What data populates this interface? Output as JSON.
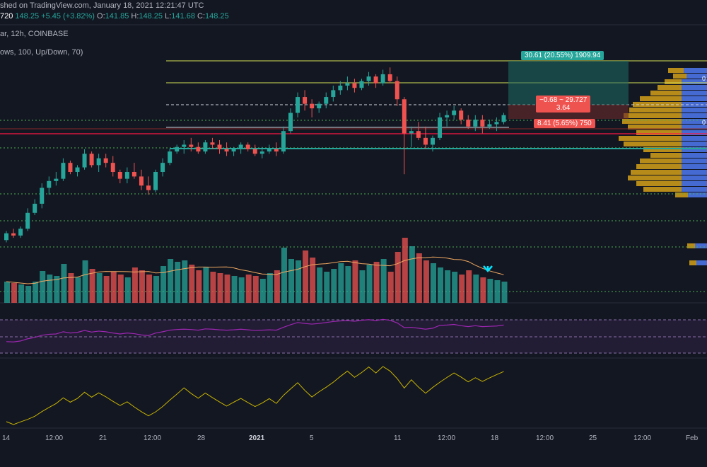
{
  "header": {
    "line1_prefix": "shed on TradingView.com, January 18, 2021 12:21:47 UTC",
    "line2": {
      "symbol_price": "720",
      "last": "148.25",
      "change": "+5.45 (+3.82%)",
      "o_label": "O:",
      "o": "141.85",
      "h_label": "H:",
      "h": "148.25",
      "l_label": "L:",
      "l": "141.68",
      "c_label": "C:",
      "c": "148.25"
    },
    "line3": "ar, 12h, COINBASE",
    "line4": "ows, 100, Up/Down, 70)"
  },
  "position_tool": {
    "target_label": "30.61 (20.55%) 1909.94",
    "mid_label_1": "−0.68 ~ 29.727",
    "mid_label_2": "3.64",
    "stop_label": "8.41 (5.65%) 750"
  },
  "edge_labels": [
    "0",
    "0"
  ],
  "x_axis": {
    "labels": [
      "14",
      "12:00",
      "21",
      "12:00",
      "28",
      "2021",
      "5",
      "11",
      "12:00",
      "18",
      "12:00",
      "25",
      "12:00",
      "Feb"
    ]
  },
  "colors": {
    "up": "#26a69a",
    "down": "#ef5350",
    "bg": "#131722",
    "vwap": "#f0a860",
    "rsi": "#9c27b0",
    "obv": "#c8b400",
    "level_green": "#4caf50",
    "level_red": "#ff1744",
    "profile_gold": "#d4a017",
    "profile_blue": "#2962ff"
  },
  "icons": {
    "signal": "arrow-down-icon"
  },
  "chart_data": {
    "type": "candlestick",
    "candles": [
      [
        138,
        142,
        137,
        141
      ],
      [
        141,
        143,
        139,
        140
      ],
      [
        140,
        144,
        139,
        143
      ],
      [
        143,
        152,
        142,
        150
      ],
      [
        150,
        156,
        149,
        154
      ],
      [
        154,
        163,
        152,
        161
      ],
      [
        161,
        166,
        158,
        164
      ],
      [
        164,
        168,
        162,
        165
      ],
      [
        165,
        174,
        164,
        172
      ],
      [
        172,
        173,
        167,
        168
      ],
      [
        168,
        171,
        166,
        170
      ],
      [
        170,
        178,
        169,
        176
      ],
      [
        176,
        177,
        170,
        171
      ],
      [
        171,
        176,
        168,
        174
      ],
      [
        174,
        176,
        170,
        172
      ],
      [
        172,
        175,
        166,
        168
      ],
      [
        168,
        169,
        163,
        165
      ],
      [
        165,
        170,
        163,
        168
      ],
      [
        168,
        172,
        165,
        166
      ],
      [
        166,
        169,
        160,
        162
      ],
      [
        162,
        166,
        158,
        160
      ],
      [
        160,
        169,
        159,
        168
      ],
      [
        168,
        174,
        166,
        172
      ],
      [
        172,
        178,
        171,
        177
      ],
      [
        177,
        180,
        176,
        179
      ],
      [
        179,
        182,
        176,
        180
      ],
      [
        180,
        183,
        177,
        179
      ],
      [
        179,
        181,
        176,
        177
      ],
      [
        177,
        182,
        176,
        181
      ],
      [
        181,
        183,
        178,
        180
      ],
      [
        180,
        182,
        176,
        178
      ],
      [
        178,
        181,
        175,
        177
      ],
      [
        177,
        179,
        175,
        178
      ],
      [
        178,
        181,
        176,
        180
      ],
      [
        180,
        181,
        177,
        178
      ],
      [
        178,
        180,
        175,
        176
      ],
      [
        176,
        179,
        174,
        177
      ],
      [
        177,
        180,
        176,
        178
      ],
      [
        178,
        181,
        175,
        177
      ],
      [
        177,
        188,
        176,
        186
      ],
      [
        186,
        196,
        185,
        194
      ],
      [
        194,
        203,
        192,
        201
      ],
      [
        201,
        204,
        195,
        198
      ],
      [
        198,
        200,
        192,
        196
      ],
      [
        196,
        199,
        194,
        198
      ],
      [
        198,
        203,
        196,
        201
      ],
      [
        201,
        206,
        199,
        204
      ],
      [
        204,
        208,
        202,
        206
      ],
      [
        206,
        210,
        204,
        207
      ],
      [
        207,
        209,
        203,
        205
      ],
      [
        205,
        209,
        204,
        208
      ],
      [
        208,
        212,
        206,
        210
      ],
      [
        210,
        211,
        205,
        207
      ],
      [
        207,
        213,
        206,
        211
      ],
      [
        211,
        214,
        207,
        208
      ],
      [
        208,
        210,
        197,
        200
      ],
      [
        200,
        201,
        167,
        185
      ],
      [
        185,
        188,
        179,
        186
      ],
      [
        186,
        190,
        182,
        183
      ],
      [
        183,
        188,
        178,
        180
      ],
      [
        180,
        184,
        177,
        183
      ],
      [
        183,
        194,
        182,
        192
      ],
      [
        192,
        195,
        188,
        193
      ],
      [
        193,
        197,
        191,
        195
      ],
      [
        195,
        196,
        189,
        191
      ],
      [
        191,
        193,
        187,
        188
      ],
      [
        188,
        193,
        186,
        191
      ],
      [
        191,
        193,
        185,
        188
      ],
      [
        188,
        191,
        187,
        189
      ],
      [
        189,
        192,
        186,
        190
      ],
      [
        190,
        194,
        189,
        193
      ]
    ],
    "volumes": [
      30,
      28,
      26,
      24,
      30,
      45,
      40,
      38,
      55,
      42,
      36,
      60,
      48,
      42,
      38,
      44,
      40,
      36,
      50,
      46,
      40,
      38,
      52,
      62,
      58,
      60,
      54,
      46,
      50,
      44,
      42,
      40,
      38,
      36,
      40,
      38,
      34,
      42,
      46,
      78,
      62,
      60,
      74,
      64,
      50,
      44,
      48,
      56,
      52,
      60,
      46,
      54,
      58,
      62,
      44,
      72,
      92,
      80,
      70,
      60,
      56,
      50,
      46,
      44,
      40,
      46,
      40,
      36,
      34,
      32,
      30
    ],
    "y_range": [
      130,
      225
    ],
    "indicators": [
      "Volume",
      "VWAP",
      "RSI",
      "OBV",
      "Volume Profile"
    ],
    "grid": false
  }
}
